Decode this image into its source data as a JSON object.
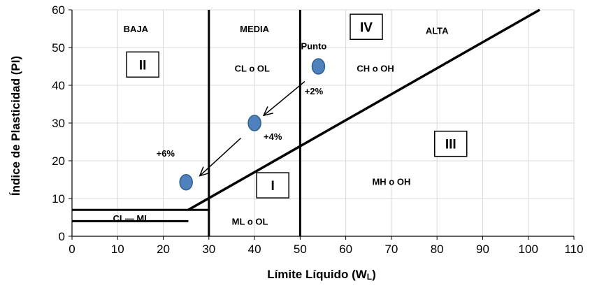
{
  "chart_data": {
    "type": "scatter",
    "xlabel": "Límite Líquido (W",
    "xlabel_sub": "L",
    "xlabel_close": ")",
    "ylabel": "Índice de Plasticidad (PI)",
    "xlim": [
      0,
      110
    ],
    "ylim": [
      0,
      60
    ],
    "xticks": [
      0,
      10,
      20,
      30,
      40,
      50,
      60,
      70,
      80,
      90,
      100,
      110
    ],
    "yticks": [
      0,
      10,
      20,
      30,
      40,
      50,
      60
    ],
    "grid": true,
    "points": [
      {
        "x": 54,
        "y": 45
      },
      {
        "x": 40,
        "y": 30
      },
      {
        "x": 25,
        "y": 14.3
      }
    ],
    "point_color": "#4f81bd",
    "line_color": "#000000",
    "a_line": [
      [
        25.5,
        7
      ],
      [
        102.5,
        60
      ]
    ],
    "vertical_lines": [
      30,
      50
    ],
    "cl_ml_band": {
      "y_top": 7,
      "y_bottom": 4,
      "x_end_bottom": 25.5
    },
    "arrows": [
      {
        "from": [
          51,
          41
        ],
        "to": [
          42,
          32
        ]
      },
      {
        "from": [
          37,
          26
        ],
        "to": [
          28,
          16
        ]
      }
    ],
    "zone_labels": [
      {
        "text": "BAJA",
        "x": 14,
        "y": 55
      },
      {
        "text": "MEDIA",
        "x": 40,
        "y": 55
      },
      {
        "text": "ALTA",
        "x": 80,
        "y": 54.5
      },
      {
        "text": "Punto",
        "x": 53,
        "y": 50.5
      },
      {
        "text": "CL  o  OL",
        "x": 39.5,
        "y": 44.5
      },
      {
        "text": "CH  o OH",
        "x": 66.5,
        "y": 44.5
      },
      {
        "text": "+2%",
        "x": 53,
        "y": 38.5
      },
      {
        "text": "+4%",
        "x": 44,
        "y": 26.5
      },
      {
        "text": "+6%",
        "x": 20.5,
        "y": 22
      },
      {
        "text": "MH   o OH",
        "x": 70,
        "y": 14.5
      },
      {
        "text": "CL— ML",
        "x": 13,
        "y": 4.8
      },
      {
        "text": "ML  o  OL",
        "x": 39,
        "y": 4
      }
    ],
    "region_boxes": [
      {
        "text": "II",
        "x": 15.5,
        "y": 45.5
      },
      {
        "text": "IV",
        "x": 64.5,
        "y": 55.5
      },
      {
        "text": "III",
        "x": 83,
        "y": 24.5
      },
      {
        "text": "I",
        "x": 44,
        "y": 13.5
      }
    ]
  }
}
